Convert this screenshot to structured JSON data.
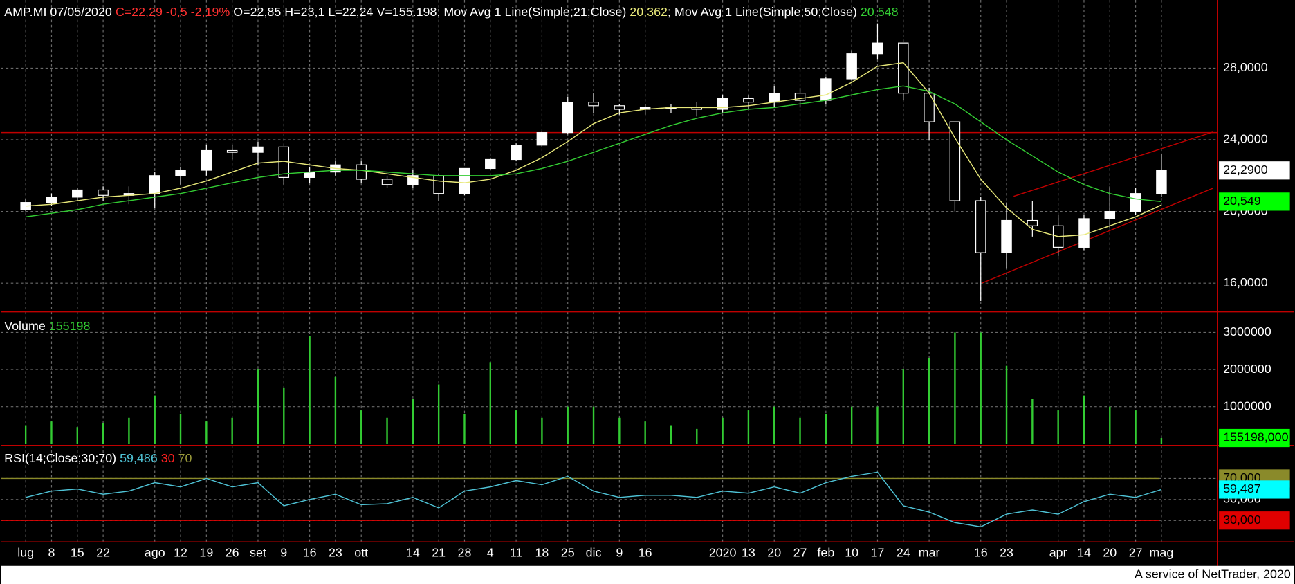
{
  "chart_data": [
    {
      "type": "candlestick",
      "title": "AMP.MI 07/05/2020",
      "quote": "C=22,29 -0,5 -2,19%",
      "ohlcv": "O=22,85 H=23,1 L=22,24 V=155.198",
      "footer": "A service of NetTrader, 2020",
      "categories": [
        "lug",
        "8",
        "15",
        "22",
        null,
        "ago",
        "12",
        "19",
        "26",
        "set",
        "9",
        "16",
        "23",
        "ott",
        null,
        "14",
        "21",
        "28",
        "4",
        "11",
        "18",
        "25",
        "dic",
        "9",
        "16",
        null,
        null,
        "2020",
        "13",
        "20",
        "27",
        "feb",
        "10",
        "17",
        "24",
        "mar",
        null,
        "16",
        "23",
        null,
        "apr",
        "14",
        "20",
        "27",
        "mag"
      ],
      "open": [
        20.1,
        20.5,
        20.8,
        21.2,
        20.9,
        21.0,
        22.0,
        22.3,
        23.4,
        23.3,
        23.6,
        21.9,
        22.2,
        22.6,
        21.8,
        21.5,
        22.0,
        21.0,
        22.4,
        22.9,
        23.7,
        24.4,
        26.1,
        25.9,
        25.7,
        25.8,
        25.8,
        25.7,
        26.3,
        26.1,
        26.6,
        26.2,
        27.4,
        28.8,
        29.4,
        26.6,
        25.0,
        20.6,
        17.7,
        19.5,
        19.2,
        18.0,
        19.6,
        20.0,
        21.0
      ],
      "high": [
        20.7,
        21.0,
        21.3,
        21.4,
        21.4,
        22.2,
        22.5,
        23.7,
        23.7,
        23.9,
        23.6,
        22.5,
        22.8,
        22.8,
        22.0,
        22.3,
        22.1,
        22.4,
        23.0,
        23.8,
        24.5,
        26.4,
        26.6,
        26.0,
        26.0,
        26.0,
        26.1,
        26.5,
        26.5,
        27.0,
        26.9,
        27.5,
        29.0,
        30.5,
        29.4,
        26.9,
        25.0,
        20.8,
        20.5,
        20.6,
        19.8,
        19.8,
        21.4,
        21.3,
        23.2
      ],
      "low": [
        20.0,
        20.3,
        20.6,
        20.6,
        20.4,
        20.2,
        21.5,
        22.0,
        22.9,
        22.6,
        21.5,
        21.6,
        22.0,
        21.6,
        21.3,
        21.3,
        20.6,
        20.9,
        22.3,
        22.8,
        23.6,
        24.3,
        25.5,
        25.4,
        25.4,
        25.5,
        25.3,
        25.5,
        25.7,
        25.8,
        25.8,
        26.0,
        27.3,
        28.5,
        26.2,
        24.0,
        20.0,
        15.0,
        16.8,
        18.6,
        17.5,
        17.8,
        19.1,
        19.8,
        20.8
      ],
      "close": [
        20.5,
        20.8,
        21.2,
        20.9,
        21.0,
        22.0,
        22.3,
        23.4,
        23.3,
        23.6,
        21.9,
        22.2,
        22.6,
        21.8,
        21.5,
        22.0,
        21.0,
        22.4,
        22.9,
        23.7,
        24.4,
        26.1,
        25.9,
        25.7,
        25.8,
        25.8,
        25.7,
        26.3,
        26.1,
        26.6,
        26.2,
        27.4,
        28.8,
        29.4,
        26.6,
        25.0,
        20.6,
        17.7,
        19.5,
        19.2,
        18.0,
        19.6,
        20.0,
        21.0,
        22.29
      ],
      "color": "#ffffff",
      "series": [
        {
          "name": "; Mov Avg 1 Line(Simple;21;Close)",
          "last": "20,362",
          "color": "#e8e87a",
          "values": [
            20.3,
            20.4,
            20.6,
            20.8,
            20.9,
            21.0,
            21.3,
            21.7,
            22.2,
            22.7,
            22.8,
            22.6,
            22.4,
            22.3,
            22.1,
            21.9,
            21.7,
            21.6,
            21.8,
            22.3,
            23.0,
            23.9,
            24.9,
            25.5,
            25.7,
            25.8,
            25.8,
            25.8,
            25.9,
            26.1,
            26.3,
            26.5,
            27.2,
            28.1,
            28.3,
            26.6,
            24.1,
            21.8,
            20.2,
            19.0,
            18.6,
            18.7,
            19.2,
            19.7,
            20.362
          ]
        },
        {
          "name": "; Mov Avg 1 Line(Simple;50;Close)",
          "last": "20,548",
          "color": "#33cc33",
          "values": [
            19.7,
            19.9,
            20.1,
            20.4,
            20.6,
            20.8,
            21.0,
            21.3,
            21.6,
            21.9,
            22.1,
            22.2,
            22.3,
            22.3,
            22.2,
            22.1,
            22.0,
            22.0,
            22.0,
            22.1,
            22.4,
            22.8,
            23.3,
            23.8,
            24.3,
            24.8,
            25.2,
            25.5,
            25.7,
            25.8,
            26.0,
            26.2,
            26.5,
            26.8,
            27.0,
            26.7,
            26.0,
            25.0,
            24.0,
            23.1,
            22.2,
            21.5,
            21.0,
            20.7,
            20.548
          ]
        }
      ],
      "ylim": [
        14.4,
        31.8
      ],
      "yticks": [
        {
          "value": 16,
          "label": "16,0000"
        },
        {
          "value": 20,
          "label": "20,0000"
        },
        {
          "value": 24,
          "label": "24,0000"
        },
        {
          "value": 28,
          "label": "28,0000"
        }
      ],
      "hline": {
        "value": 24.4,
        "color": "#c00000"
      },
      "markers": [
        {
          "value": 22.29,
          "label": "22,2900",
          "color": "#ffffff"
        },
        {
          "value": 20.549,
          "label": "20,549",
          "color": "#00ff00"
        }
      ],
      "grid": true
    },
    {
      "type": "bar",
      "title": "Volume",
      "last": "155198",
      "color": "#33cc33",
      "values": [
        500000,
        600000,
        450000,
        550000,
        700000,
        1300000,
        800000,
        600000,
        700000,
        2000000,
        1500000,
        2900000,
        1800000,
        900000,
        700000,
        1200000,
        1600000,
        800000,
        2200000,
        900000,
        700000,
        1000000,
        1000000,
        700000,
        600000,
        500000,
        400000,
        700000,
        900000,
        1000000,
        700000,
        800000,
        1000000,
        1000000,
        2000000,
        2300000,
        3000000,
        3000000,
        2100000,
        1200000,
        900000,
        1300000,
        1000000,
        900000,
        155198
      ],
      "ylim": [
        0,
        3400000
      ],
      "yticks": [
        1000000,
        2000000,
        3000000
      ],
      "markers": [
        {
          "value": 155198,
          "label": "155198,000",
          "color": "#00ff00"
        }
      ],
      "grid": true
    },
    {
      "type": "line",
      "title": "RSI(14;Close;30;70)",
      "last": "59,486",
      "color": "#4fc3d6",
      "values": [
        52,
        58,
        60,
        55,
        58,
        66,
        62,
        70,
        62,
        66,
        44,
        50,
        55,
        45,
        46,
        52,
        42,
        58,
        62,
        68,
        64,
        72,
        58,
        52,
        54,
        54,
        52,
        58,
        56,
        62,
        56,
        66,
        72,
        76,
        44,
        38,
        28,
        24,
        36,
        40,
        36,
        48,
        55,
        52,
        59.486
      ],
      "ylim": [
        9.6,
        97.5
      ],
      "yticks": [
        {
          "value": 30,
          "label": "30,000"
        },
        {
          "value": 50,
          "label": "50,000"
        },
        {
          "value": 70,
          "label": "70,000"
        }
      ],
      "levels": [
        {
          "value": 30,
          "color": "#e00000"
        },
        {
          "value": 70,
          "color": "#8a8a2a"
        }
      ],
      "markers": [
        {
          "value": 59.487,
          "label": "59,487",
          "color": "#00ffff"
        }
      ],
      "grid": true
    }
  ]
}
